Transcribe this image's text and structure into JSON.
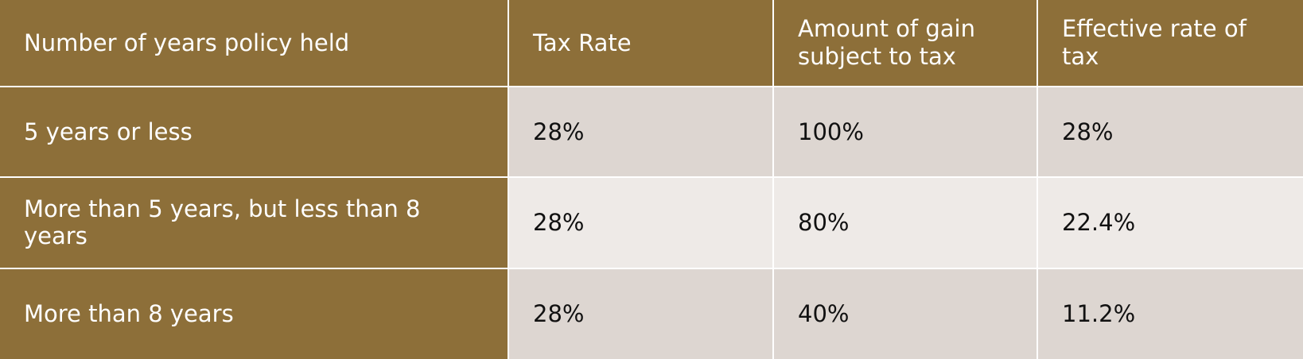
{
  "table": {
    "header": [
      "Number of years policy held",
      "Tax Rate",
      "Amount of gain subject to tax",
      "Effective rate of tax"
    ],
    "rows": [
      [
        "5 years or less",
        "28%",
        "100%",
        "28%"
      ],
      [
        "More than 5 years, but less than 8 years",
        "28%",
        "80%",
        "22.4%"
      ],
      [
        "More than 8 years",
        "28%",
        "40%",
        "11.2%"
      ]
    ]
  }
}
